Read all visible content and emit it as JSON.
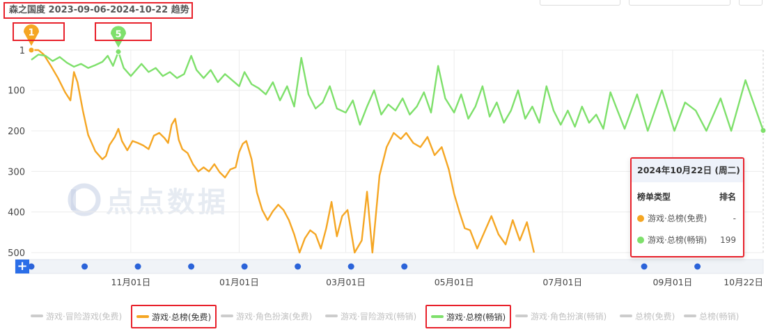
{
  "title": "森之国度 2023-09-06-2024-10-22 趋势",
  "markers": [
    {
      "label": "1",
      "series": "游戏·总榜(免费)",
      "date": "2023-09-06",
      "rank": 1,
      "color": "#f5a623"
    },
    {
      "label": "5",
      "series": "游戏·总榜(畅销)",
      "date": "2023-10-25",
      "rank": 5,
      "color": "#7ee06b"
    }
  ],
  "watermark": "点点数据",
  "legend": [
    {
      "label": "游戏·冒险游戏(免费)",
      "active": false
    },
    {
      "label": "游戏·总榜(免费)",
      "active": true,
      "color": "#f5a623"
    },
    {
      "label": "游戏·角色扮演(免费)",
      "active": false
    },
    {
      "label": "游戏·冒险游戏(畅销)",
      "active": false
    },
    {
      "label": "游戏·总榜(畅销)",
      "active": true,
      "color": "#7ee06b"
    },
    {
      "label": "游戏·角色扮演(畅销)",
      "active": false
    },
    {
      "label": "总榜(免费)",
      "active": false
    },
    {
      "label": "总榜(畅销)",
      "active": false
    }
  ],
  "tooltip": {
    "date": "2024年10月22日 (周二)",
    "col_type": "榜单类型",
    "col_rank": "排名",
    "rows": [
      {
        "label": "游戏·总榜(免费)",
        "value": "-",
        "color": "#f5a623"
      },
      {
        "label": "游戏·总榜(畅销)",
        "value": "199",
        "color": "#7ee06b"
      }
    ]
  },
  "slider": {
    "plus": "+"
  },
  "chart_data": {
    "type": "line",
    "title": "森之国度 2023-09-06-2024-10-22 趋势",
    "xlabel": "",
    "ylabel": "",
    "x_range": [
      "2023-09-06",
      "2024-10-22"
    ],
    "y_range": [
      1,
      500
    ],
    "y_inverted": true,
    "y_ticks": [
      1,
      100,
      200,
      300,
      400,
      500
    ],
    "y_tick_labels": [
      "1",
      "100",
      "200",
      "300",
      "400",
      "500"
    ],
    "x_ticks": [
      "2023-11-01",
      "2024-01-01",
      "2024-03-01",
      "2024-05-01",
      "2024-07-01",
      "2024-09-01",
      "2024-10-22"
    ],
    "x_tick_labels": [
      "11月01日",
      "01月01日",
      "03月01日",
      "05月01日",
      "07月01日",
      "09月01日",
      "10月22日"
    ],
    "grid": true,
    "legend_position": "bottom",
    "series": [
      {
        "name": "游戏·总榜(免费)",
        "color": "#f5a623",
        "points": [
          [
            "2023-09-06",
            1
          ],
          [
            "2023-09-10",
            1
          ],
          [
            "2023-09-13",
            12
          ],
          [
            "2023-09-17",
            40
          ],
          [
            "2023-09-21",
            70
          ],
          [
            "2023-09-25",
            105
          ],
          [
            "2023-09-28",
            125
          ],
          [
            "2023-09-30",
            55
          ],
          [
            "2023-10-02",
            80
          ],
          [
            "2023-10-05",
            150
          ],
          [
            "2023-10-08",
            210
          ],
          [
            "2023-10-12",
            250
          ],
          [
            "2023-10-16",
            270
          ],
          [
            "2023-10-18",
            262
          ],
          [
            "2023-10-20",
            235
          ],
          [
            "2023-10-23",
            215
          ],
          [
            "2023-10-25",
            195
          ],
          [
            "2023-10-27",
            225
          ],
          [
            "2023-10-30",
            248
          ],
          [
            "2023-11-02",
            225
          ],
          [
            "2023-11-05",
            230
          ],
          [
            "2023-11-08",
            236
          ],
          [
            "2023-11-11",
            245
          ],
          [
            "2023-11-14",
            212
          ],
          [
            "2023-11-17",
            205
          ],
          [
            "2023-11-20",
            218
          ],
          [
            "2023-11-22",
            230
          ],
          [
            "2023-11-24",
            185
          ],
          [
            "2023-11-26",
            170
          ],
          [
            "2023-11-28",
            222
          ],
          [
            "2023-11-30",
            245
          ],
          [
            "2023-12-03",
            255
          ],
          [
            "2023-12-06",
            282
          ],
          [
            "2023-12-09",
            300
          ],
          [
            "2023-12-12",
            290
          ],
          [
            "2023-12-15",
            300
          ],
          [
            "2023-12-18",
            282
          ],
          [
            "2023-12-21",
            302
          ],
          [
            "2023-12-24",
            315
          ],
          [
            "2023-12-27",
            295
          ],
          [
            "2023-12-30",
            290
          ],
          [
            "2024-01-01",
            252
          ],
          [
            "2024-01-03",
            232
          ],
          [
            "2024-01-05",
            225
          ],
          [
            "2024-01-08",
            270
          ],
          [
            "2024-01-11",
            352
          ],
          [
            "2024-01-14",
            395
          ],
          [
            "2024-01-17",
            420
          ],
          [
            "2024-01-20",
            398
          ],
          [
            "2024-01-23",
            382
          ],
          [
            "2024-01-26",
            395
          ],
          [
            "2024-01-29",
            420
          ],
          [
            "2024-02-01",
            455
          ],
          [
            "2024-02-04",
            500
          ],
          [
            "2024-02-07",
            465
          ],
          [
            "2024-02-10",
            445
          ],
          [
            "2024-02-13",
            455
          ],
          [
            "2024-02-16",
            490
          ],
          [
            "2024-02-19",
            440
          ],
          [
            "2024-02-22",
            375
          ],
          [
            "2024-02-25",
            460
          ],
          [
            "2024-02-28",
            410
          ],
          [
            "2024-03-02",
            395
          ],
          [
            "2024-03-06",
            500
          ],
          [
            "2024-03-10",
            470
          ],
          [
            "2024-03-13",
            350
          ],
          [
            "2024-03-16",
            500
          ],
          [
            "2024-03-20",
            310
          ],
          [
            "2024-03-24",
            240
          ],
          [
            "2024-03-28",
            205
          ],
          [
            "2024-04-01",
            220
          ],
          [
            "2024-04-04",
            205
          ],
          [
            "2024-04-08",
            230
          ],
          [
            "2024-04-12",
            240
          ],
          [
            "2024-04-16",
            215
          ],
          [
            "2024-04-20",
            260
          ],
          [
            "2024-04-24",
            240
          ],
          [
            "2024-04-28",
            295
          ],
          [
            "2024-05-01",
            355
          ],
          [
            "2024-05-04",
            400
          ],
          [
            "2024-05-07",
            440
          ],
          [
            "2024-05-10",
            445
          ],
          [
            "2024-05-14",
            490
          ],
          [
            "2024-05-18",
            450
          ],
          [
            "2024-05-22",
            410
          ],
          [
            "2024-05-26",
            455
          ],
          [
            "2024-05-30",
            480
          ],
          [
            "2024-06-03",
            420
          ],
          [
            "2024-06-07",
            470
          ],
          [
            "2024-06-11",
            425
          ],
          [
            "2024-06-15",
            500
          ]
        ]
      },
      {
        "name": "游戏·总榜(畅销)",
        "color": "#7ee06b",
        "points": [
          [
            "2023-09-06",
            25
          ],
          [
            "2023-09-10",
            12
          ],
          [
            "2023-09-14",
            15
          ],
          [
            "2023-09-18",
            28
          ],
          [
            "2023-09-22",
            18
          ],
          [
            "2023-09-26",
            32
          ],
          [
            "2023-09-30",
            42
          ],
          [
            "2023-10-04",
            35
          ],
          [
            "2023-10-08",
            45
          ],
          [
            "2023-10-12",
            38
          ],
          [
            "2023-10-16",
            30
          ],
          [
            "2023-10-19",
            15
          ],
          [
            "2023-10-22",
            40
          ],
          [
            "2023-10-25",
            5
          ],
          [
            "2023-10-28",
            45
          ],
          [
            "2023-11-01",
            65
          ],
          [
            "2023-11-04",
            50
          ],
          [
            "2023-11-07",
            35
          ],
          [
            "2023-11-11",
            55
          ],
          [
            "2023-11-15",
            45
          ],
          [
            "2023-11-19",
            65
          ],
          [
            "2023-11-23",
            55
          ],
          [
            "2023-11-27",
            70
          ],
          [
            "2023-12-01",
            60
          ],
          [
            "2023-12-05",
            15
          ],
          [
            "2023-12-08",
            50
          ],
          [
            "2023-12-12",
            70
          ],
          [
            "2023-12-16",
            50
          ],
          [
            "2023-12-20",
            80
          ],
          [
            "2023-12-24",
            60
          ],
          [
            "2023-12-28",
            75
          ],
          [
            "2024-01-01",
            90
          ],
          [
            "2024-01-04",
            55
          ],
          [
            "2024-01-08",
            85
          ],
          [
            "2024-01-12",
            95
          ],
          [
            "2024-01-16",
            110
          ],
          [
            "2024-01-20",
            80
          ],
          [
            "2024-01-24",
            125
          ],
          [
            "2024-01-28",
            90
          ],
          [
            "2024-02-01",
            140
          ],
          [
            "2024-02-05",
            20
          ],
          [
            "2024-02-09",
            110
          ],
          [
            "2024-02-13",
            145
          ],
          [
            "2024-02-17",
            130
          ],
          [
            "2024-02-21",
            90
          ],
          [
            "2024-02-25",
            145
          ],
          [
            "2024-03-01",
            155
          ],
          [
            "2024-03-05",
            125
          ],
          [
            "2024-03-09",
            185
          ],
          [
            "2024-03-13",
            140
          ],
          [
            "2024-03-17",
            100
          ],
          [
            "2024-03-21",
            160
          ],
          [
            "2024-03-25",
            135
          ],
          [
            "2024-03-29",
            150
          ],
          [
            "2024-04-02",
            120
          ],
          [
            "2024-04-06",
            160
          ],
          [
            "2024-04-10",
            140
          ],
          [
            "2024-04-14",
            105
          ],
          [
            "2024-04-18",
            155
          ],
          [
            "2024-04-22",
            40
          ],
          [
            "2024-04-26",
            120
          ],
          [
            "2024-05-01",
            155
          ],
          [
            "2024-05-05",
            110
          ],
          [
            "2024-05-09",
            170
          ],
          [
            "2024-05-13",
            140
          ],
          [
            "2024-05-17",
            90
          ],
          [
            "2024-05-21",
            165
          ],
          [
            "2024-05-25",
            130
          ],
          [
            "2024-05-29",
            180
          ],
          [
            "2024-06-02",
            150
          ],
          [
            "2024-06-06",
            100
          ],
          [
            "2024-06-10",
            170
          ],
          [
            "2024-06-14",
            140
          ],
          [
            "2024-06-18",
            180
          ],
          [
            "2024-06-22",
            90
          ],
          [
            "2024-06-26",
            150
          ],
          [
            "2024-06-30",
            185
          ],
          [
            "2024-07-04",
            150
          ],
          [
            "2024-07-08",
            190
          ],
          [
            "2024-07-12",
            140
          ],
          [
            "2024-07-16",
            180
          ],
          [
            "2024-07-20",
            160
          ],
          [
            "2024-07-24",
            195
          ],
          [
            "2024-07-28",
            105
          ],
          [
            "2024-08-01",
            150
          ],
          [
            "2024-08-05",
            195
          ],
          [
            "2024-08-12",
            110
          ],
          [
            "2024-08-18",
            200
          ],
          [
            "2024-08-26",
            100
          ],
          [
            "2024-09-02",
            200
          ],
          [
            "2024-09-08",
            130
          ],
          [
            "2024-09-14",
            150
          ],
          [
            "2024-09-20",
            200
          ],
          [
            "2024-09-28",
            120
          ],
          [
            "2024-10-04",
            200
          ],
          [
            "2024-10-12",
            75
          ],
          [
            "2024-10-22",
            199
          ]
        ]
      }
    ]
  }
}
